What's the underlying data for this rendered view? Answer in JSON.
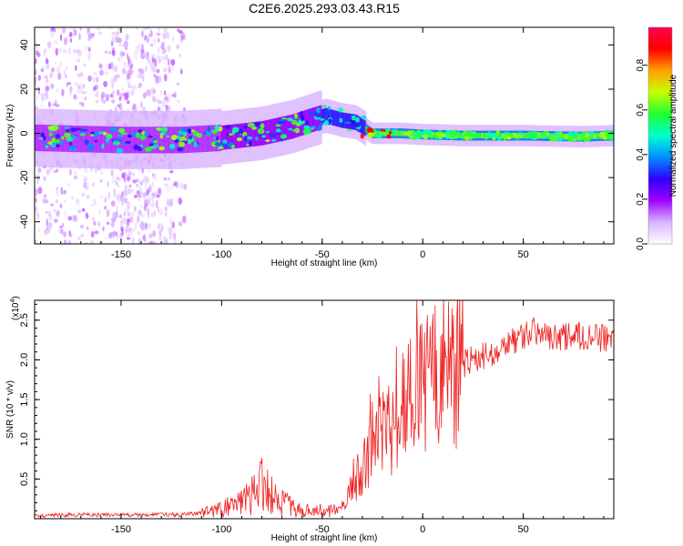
{
  "title": "C2E6.2025.293.03.43.R15",
  "chart_data": [
    {
      "type": "heatmap",
      "xlabel": "Height of straight line (km)",
      "ylabel": "Frequency (Hz)",
      "xlim": [
        -193,
        95
      ],
      "ylim": [
        -50,
        48
      ],
      "xticks": [
        -150,
        -100,
        -50,
        0,
        50
      ],
      "yticks": [
        -40,
        -20,
        0,
        20,
        40
      ],
      "colorbar": {
        "label": "Normalized spectral amplitude",
        "range": [
          0,
          0.97
        ],
        "ticks": [
          0.0,
          0.2,
          0.4,
          0.6,
          0.8
        ],
        "colormap": [
          "#ffffff",
          "#d8b4ff",
          "#a000ff",
          "#3000ff",
          "#0090ff",
          "#00ffd0",
          "#20ff30",
          "#c8ff00",
          "#ffa000",
          "#ff0000",
          "#ff0050"
        ]
      },
      "ridge": {
        "height_km": [
          -193,
          -150,
          -120,
          -100,
          -80,
          -65,
          -55,
          -48,
          -40,
          -33,
          -28,
          -25,
          -20,
          -10,
          0,
          20,
          50,
          80,
          95
        ],
        "center_frequency_hz": [
          -2,
          -3,
          -3,
          -2,
          0,
          3,
          6,
          8,
          6,
          5,
          2,
          0,
          0,
          0,
          -0.5,
          -1,
          -1,
          -1.5,
          -1
        ]
      }
    },
    {
      "type": "line",
      "xlabel": "Height of straight line (km)",
      "ylabel": "SNR (10 * v/v)",
      "yscale_label": "(x10",
      "yscale_exponent": "4",
      "xlim": [
        -193,
        95
      ],
      "ylim": [
        0,
        2.75
      ],
      "xticks": [
        -150,
        -100,
        -50,
        0,
        50
      ],
      "yticks": [
        0.5,
        1.0,
        1.5,
        2.0,
        2.5
      ],
      "ytick_labels": [
        "0.5",
        "1.0",
        "1.5",
        "2.0",
        "2.5"
      ],
      "series": [
        {
          "name": "SNR",
          "color": "#ee2222",
          "x": [
            -193,
            -170,
            -150,
            -130,
            -120,
            -110,
            -100,
            -90,
            -85,
            -80,
            -78,
            -75,
            -70,
            -65,
            -60,
            -55,
            -50,
            -45,
            -40,
            -35,
            -30,
            -25,
            -20,
            -15,
            -10,
            -5,
            0,
            5,
            10,
            20,
            30,
            40,
            50,
            55,
            60,
            70,
            80,
            95
          ],
          "y": [
            0.04,
            0.05,
            0.05,
            0.05,
            0.05,
            0.07,
            0.12,
            0.2,
            0.28,
            0.4,
            0.55,
            0.3,
            0.2,
            0.15,
            0.09,
            0.1,
            0.1,
            0.1,
            0.12,
            0.4,
            0.65,
            0.95,
            1.05,
            1.15,
            1.35,
            1.5,
            1.65,
            1.75,
            1.85,
            1.95,
            2.05,
            2.15,
            2.3,
            2.4,
            2.3,
            2.3,
            2.3,
            2.25
          ]
        }
      ]
    }
  ]
}
